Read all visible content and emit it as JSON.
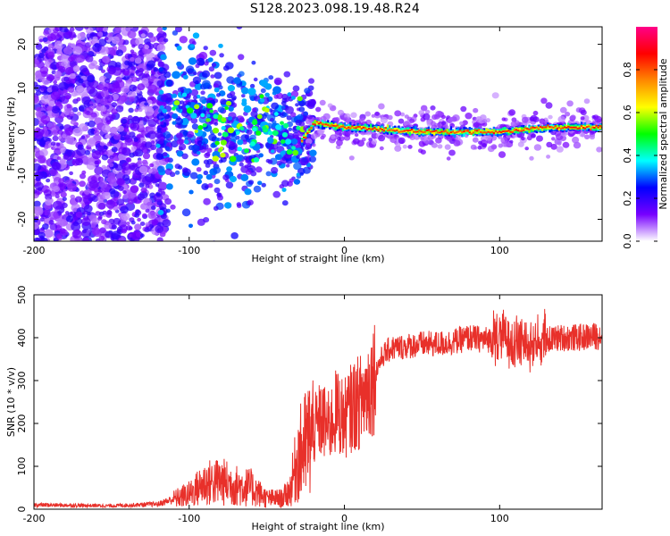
{
  "title": "S128.2023.098.19.48.R24",
  "chart_data": [
    {
      "type": "heatmap",
      "xlabel": "Height of straight line (km)",
      "ylabel": "Frequency (Hz)",
      "xlim": [
        -200,
        166
      ],
      "ylim": [
        -25,
        24
      ],
      "xticks": [
        -200,
        -100,
        0,
        100
      ],
      "yticks": [
        -20,
        -10,
        0,
        10,
        20
      ],
      "colorbar": {
        "label": "Normalized spectral amplitude",
        "range": [
          0,
          1
        ],
        "ticks": [
          0.0,
          0.2,
          0.4,
          0.6,
          0.8
        ],
        "colors": [
          "#ffffff",
          "#7700ff",
          "#0000ff",
          "#00ffff",
          "#00ff00",
          "#ffff00",
          "#ff8800",
          "#ff0000",
          "#ff0088"
        ]
      },
      "ridge": [
        {
          "x": -110,
          "y": 5
        },
        {
          "x": -90,
          "y": 3
        },
        {
          "x": -70,
          "y": -1
        },
        {
          "x": -50,
          "y": 2
        },
        {
          "x": -30,
          "y": -3
        },
        {
          "x": -20,
          "y": 2
        },
        {
          "x": 0,
          "y": 1
        },
        {
          "x": 50,
          "y": 0
        },
        {
          "x": 100,
          "y": 0
        },
        {
          "x": 130,
          "y": 1
        },
        {
          "x": 166,
          "y": 1
        }
      ]
    },
    {
      "type": "line",
      "xlabel": "Height of straight line (km)",
      "ylabel": "SNR (10 * v/v)",
      "xlim": [
        -200,
        166
      ],
      "ylim": [
        0,
        500
      ],
      "xticks": [
        -200,
        -100,
        0,
        100
      ],
      "yticks": [
        0,
        100,
        200,
        300,
        400,
        500
      ],
      "color": "#e8302a",
      "x": [
        -200,
        -150,
        -120,
        -100,
        -90,
        -80,
        -70,
        -60,
        -50,
        -40,
        -35,
        -30,
        -25,
        -20,
        -15,
        -10,
        -5,
        0,
        5,
        10,
        15,
        20,
        25,
        30,
        40,
        50,
        60,
        70,
        80,
        90,
        100,
        110,
        120,
        130,
        140,
        150,
        166
      ],
      "y": [
        10,
        8,
        12,
        35,
        60,
        65,
        55,
        50,
        25,
        25,
        45,
        120,
        150,
        180,
        210,
        190,
        230,
        210,
        240,
        250,
        280,
        320,
        360,
        375,
        380,
        385,
        385,
        390,
        400,
        395,
        400,
        395,
        385,
        395,
        400,
        400,
        405
      ]
    }
  ]
}
